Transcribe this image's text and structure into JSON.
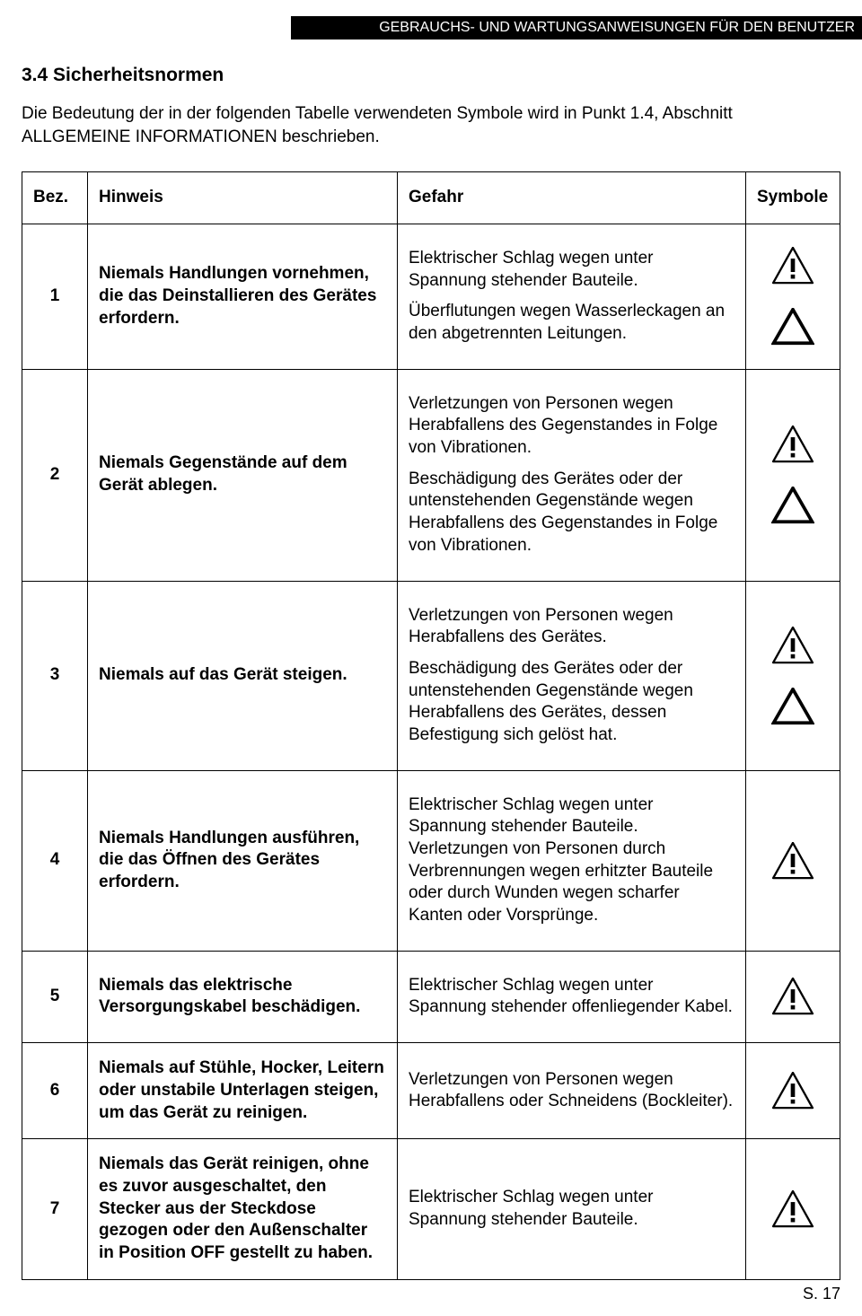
{
  "header_bar": "GEBRAUCHS- UND WARTUNGSANWEISUNGEN  FÜR DEN BENUTZER",
  "section_title": "3.4 Sicherheitsnormen",
  "intro_text": "Die Bedeutung der in der folgenden Tabelle verwendeten Symbole wird in Punkt 1.4, Abschnitt ALLGEMEINE INFORMATIONEN beschrieben.",
  "columns": {
    "bez": "Bez.",
    "hinweis": "Hinweis",
    "gefahr": "Gefahr",
    "symbole": "Symbole"
  },
  "symbol_types": {
    "danger": "warning-exclamation-triangle",
    "caution": "warning-empty-triangle"
  },
  "rows": [
    {
      "bez": "1",
      "hinweis": "Niemals Handlungen vornehmen, die das Deinstallieren des Gerätes erfordern.",
      "gefahr": [
        "Elektrischer Schlag wegen unter Spannung stehender Bauteile.",
        "Überflutungen wegen Wasserleckagen an den abgetrennten Leitungen."
      ],
      "symbols": [
        "danger",
        "caution"
      ]
    },
    {
      "bez": "2",
      "hinweis": "Niemals Gegenstände auf dem Gerät ablegen.",
      "gefahr": [
        "Verletzungen von Personen wegen Herabfallens des Gegenstandes in Folge von Vibrationen.",
        "Beschädigung des Gerätes oder der untenstehenden Gegenstände wegen Herabfallens des Gegenstandes in Folge von Vibrationen."
      ],
      "symbols": [
        "danger",
        "caution"
      ]
    },
    {
      "bez": "3",
      "hinweis": "Niemals auf das Gerät steigen.",
      "gefahr": [
        "Verletzungen von Personen wegen Herabfallens des Gerätes.",
        "Beschädigung des Gerätes oder der untenstehenden Gegenstände wegen Herabfallens des Gerätes, dessen Befestigung sich gelöst hat."
      ],
      "symbols": [
        "danger",
        "caution"
      ]
    },
    {
      "bez": "4",
      "hinweis": "Niemals Handlungen ausführen, die das Öffnen des Gerätes erfordern.",
      "gefahr": [
        "Elektrischer Schlag wegen unter Spannung stehender Bauteile.\nVerletzungen von Personen durch Verbrennungen wegen erhitzter Bauteile oder durch Wunden wegen scharfer Kanten oder Vorsprünge."
      ],
      "symbols": [
        "danger"
      ]
    },
    {
      "bez": "5",
      "hinweis": "Niemals das elektrische Versorgungskabel beschädigen.",
      "gefahr": [
        "Elektrischer Schlag wegen unter Spannung stehender offenliegender Kabel."
      ],
      "symbols": [
        "danger"
      ]
    },
    {
      "bez": "6",
      "hinweis": "Niemals auf Stühle, Hocker, Leitern oder unstabile Unterlagen steigen, um das Gerät zu reinigen.",
      "gefahr": [
        "Verletzungen von Personen wegen Herabfallens oder Schneidens (Bockleiter)."
      ],
      "symbols": [
        "danger"
      ]
    },
    {
      "bez": "7",
      "hinweis": "Niemals das Gerät reinigen, ohne es zuvor ausgeschaltet, den Stecker aus der Steckdose gezogen oder den Außenschalter in Position OFF gestellt zu haben.",
      "gefahr": [
        "Elektrischer Schlag wegen unter Spannung stehender Bauteile."
      ],
      "symbols": [
        "danger"
      ]
    }
  ],
  "page_number": "S. 17"
}
